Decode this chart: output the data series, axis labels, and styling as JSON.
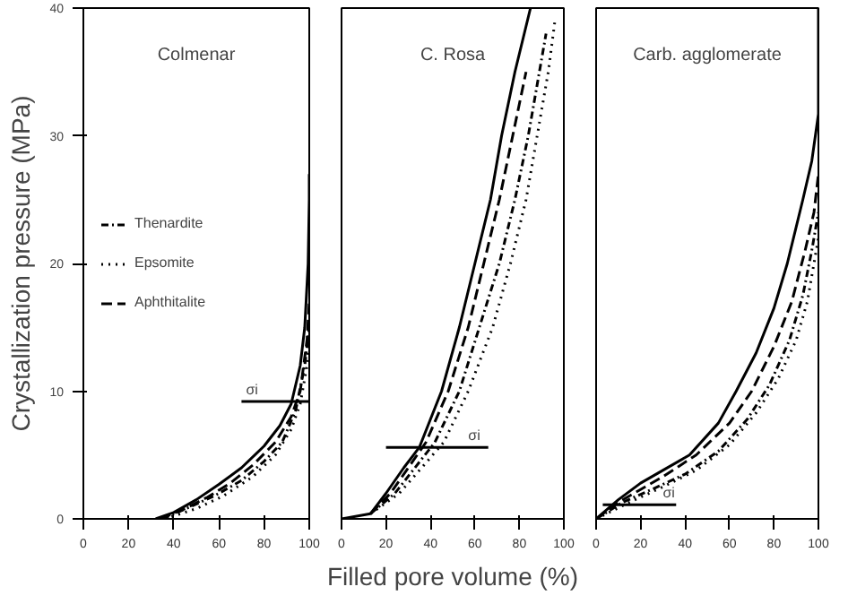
{
  "chart_data": [
    {
      "type": "line",
      "title": "Colmenar",
      "ylabel": "Crystallization pressure (MPa)",
      "xlim": [
        0,
        100
      ],
      "ylim": [
        0,
        40
      ],
      "xticks": [
        0,
        20,
        40,
        60,
        80,
        100
      ],
      "yticks": [
        0,
        10,
        20,
        30,
        40
      ],
      "legend": "left",
      "grid": false,
      "series": [
        {
          "color": "#000000",
          "line_style": "solid",
          "x": [
            32,
            40,
            50,
            60,
            70,
            80,
            87,
            92,
            96,
            98,
            99.5,
            100,
            100
          ],
          "values": [
            0,
            0.5,
            1.5,
            2.7,
            4,
            5.7,
            7.3,
            9,
            12,
            15,
            20,
            25,
            27
          ]
        },
        {
          "name": "Thenardite",
          "color": "#000000",
          "line_style": "dashdot",
          "x": [
            35,
            48,
            58,
            70,
            80,
            88,
            94,
            98,
            100
          ],
          "values": [
            0,
            1,
            1.8,
            3,
            4.5,
            6,
            8.5,
            12,
            15
          ]
        },
        {
          "name": "Epsomite",
          "color": "#000000",
          "line_style": "dotted",
          "x": [
            36,
            50,
            62,
            75,
            85,
            92,
            96,
            99,
            100
          ],
          "values": [
            0,
            0.8,
            1.8,
            3.3,
            5,
            7,
            9,
            12,
            14
          ]
        },
        {
          "name": "Aphthitalite",
          "color": "#000000",
          "line_style": "dashed",
          "x": [
            34,
            45,
            55,
            65,
            75,
            85,
            92,
            96,
            99,
            100
          ],
          "values": [
            0,
            0.8,
            1.7,
            2.8,
            4.2,
            6,
            8,
            10,
            14,
            17
          ]
        },
        {
          "color": "#000000",
          "line_style": "solid",
          "x": [
            70,
            100
          ],
          "values": [
            9.2,
            9.2
          ]
        }
      ],
      "annotations": [
        {
          "text": "σi",
          "x": 72,
          "y": 9.2
        }
      ]
    },
    {
      "type": "line",
      "title": "C. Rosa",
      "xlabel": "Filled pore volume (%)",
      "xlim": [
        0,
        100
      ],
      "ylim": [
        0,
        40
      ],
      "xticks": [
        0,
        20,
        40,
        60,
        80,
        100
      ],
      "tick_labels": "x",
      "grid": false,
      "series": [
        {
          "color": "#000000",
          "line_style": "solid",
          "x": [
            0,
            13,
            20,
            28,
            35,
            45,
            53,
            60,
            67,
            72,
            78,
            85
          ],
          "values": [
            0,
            0.4,
            2,
            4,
            5.6,
            10,
            15,
            20,
            25,
            30,
            35,
            40
          ]
        },
        {
          "color": "#000000",
          "line_style": "dashdot",
          "x": [
            13,
            24,
            33,
            42,
            53,
            62,
            71,
            78,
            84,
            89,
            92
          ],
          "values": [
            0.4,
            2,
            4,
            6,
            10,
            15,
            20,
            25,
            30,
            35,
            38
          ]
        },
        {
          "color": "#000000",
          "line_style": "dotted",
          "x": [
            13,
            26,
            36,
            46,
            57,
            68,
            76,
            83,
            88,
            93,
            96
          ],
          "values": [
            0.4,
            2,
            4,
            6,
            10,
            15,
            20,
            25,
            30,
            35,
            39
          ]
        },
        {
          "color": "#000000",
          "line_style": "dashed",
          "x": [
            13,
            22,
            30,
            38,
            48,
            57,
            64,
            71,
            77,
            83
          ],
          "values": [
            0.4,
            2,
            4,
            6,
            10,
            15,
            20,
            25,
            30,
            35
          ]
        },
        {
          "color": "#000000",
          "line_style": "solid",
          "x": [
            20,
            66
          ],
          "values": [
            5.6,
            5.6
          ]
        }
      ],
      "annotations": [
        {
          "text": "σi",
          "x": 57,
          "y": 5.6
        }
      ]
    },
    {
      "type": "line",
      "title": "Carb. agglomerate",
      "xlim": [
        0,
        100
      ],
      "ylim": [
        0,
        40
      ],
      "xticks": [
        0,
        20,
        40,
        60,
        80,
        100
      ],
      "tick_labels": "x",
      "grid": false,
      "series": [
        {
          "color": "#000000",
          "line_style": "solid",
          "x": [
            0,
            10,
            20,
            30,
            42,
            55,
            63,
            72,
            80,
            86,
            93,
            97,
            100,
            100
          ],
          "values": [
            0,
            1.5,
            2.8,
            3.8,
            5,
            7.5,
            10,
            13,
            16.5,
            20,
            25,
            28,
            31.7,
            40
          ]
        },
        {
          "color": "#000000",
          "line_style": "dashdot",
          "x": [
            0,
            12,
            25,
            40,
            55,
            68,
            78,
            87,
            93,
            97,
            100
          ],
          "values": [
            0,
            1.3,
            2.3,
            3.5,
            5.3,
            7.8,
            10.5,
            14,
            17.5,
            21,
            24
          ]
        },
        {
          "color": "#000000",
          "line_style": "dotted",
          "x": [
            0,
            15,
            30,
            45,
            60,
            72,
            82,
            90,
            95,
            99,
            100
          ],
          "values": [
            0,
            1.3,
            2.5,
            3.8,
            5.8,
            8.3,
            11,
            14,
            17,
            21,
            22
          ]
        },
        {
          "color": "#000000",
          "line_style": "dashed",
          "x": [
            0,
            10,
            20,
            30,
            45,
            60,
            70,
            80,
            88,
            94,
            98,
            100
          ],
          "values": [
            0,
            1.3,
            2.3,
            3.3,
            5,
            7.5,
            10,
            13.5,
            17,
            21,
            24,
            27
          ]
        },
        {
          "color": "#000000",
          "line_style": "solid",
          "x": [
            3,
            36
          ],
          "values": [
            1.1,
            1.1
          ]
        }
      ],
      "annotations": [
        {
          "text": "σi",
          "x": 30,
          "y": 1.1
        }
      ]
    }
  ]
}
